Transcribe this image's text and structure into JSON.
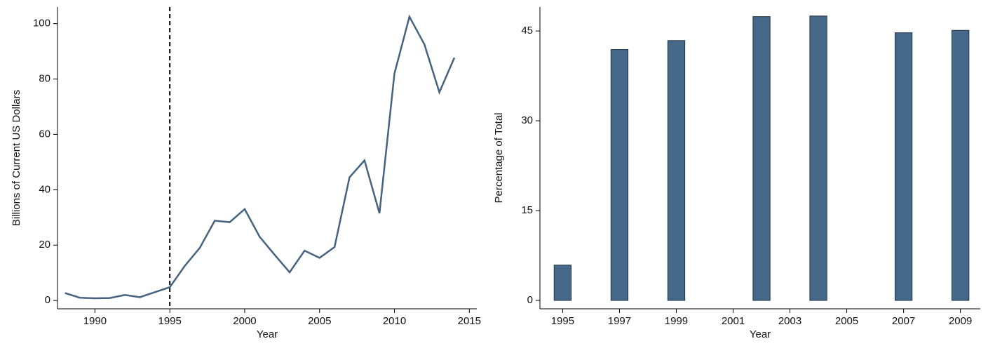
{
  "chart_data": [
    {
      "type": "line",
      "xlabel": "Year",
      "ylabel": "Billions of Current US Dollars",
      "x": [
        1988,
        1989,
        1990,
        1991,
        1992,
        1993,
        1994,
        1995,
        1996,
        1997,
        1998,
        1999,
        2000,
        2001,
        2002,
        2003,
        2004,
        2005,
        2006,
        2007,
        2008,
        2009,
        2010,
        2011,
        2012,
        2013,
        2014
      ],
      "values": [
        2.7,
        1,
        0.8,
        0.9,
        2,
        1.2,
        3,
        4.8,
        12.5,
        19,
        28.8,
        28.3,
        33,
        23,
        16.5,
        10.2,
        18,
        15.4,
        19.3,
        44.5,
        50.6,
        31.5,
        82,
        102.5,
        92.5,
        75.2,
        87.7
      ],
      "color": "#45627e",
      "vline": 1995,
      "xlim": [
        1987.5,
        2015.5
      ],
      "xticks": [
        1990,
        1995,
        2000,
        2005,
        2010,
        2015
      ],
      "ylim": [
        -3,
        106
      ],
      "yticks": [
        0,
        20,
        40,
        60,
        80,
        100
      ]
    },
    {
      "type": "bar",
      "xlabel": "Year",
      "ylabel": "Percentage of Total",
      "x": [
        1995,
        1997,
        1999,
        2002,
        2004,
        2007,
        2009
      ],
      "values": [
        5.9,
        41.9,
        43.4,
        47.4,
        47.5,
        44.7,
        45.1
      ],
      "color": "#46698a",
      "xlim": [
        1994.2,
        2009.7
      ],
      "xticks": [
        1995,
        1997,
        1999,
        2001,
        2003,
        2005,
        2007,
        2009
      ],
      "ylim": [
        -1.4,
        49
      ],
      "yticks": [
        0,
        15,
        30,
        45
      ]
    }
  ]
}
